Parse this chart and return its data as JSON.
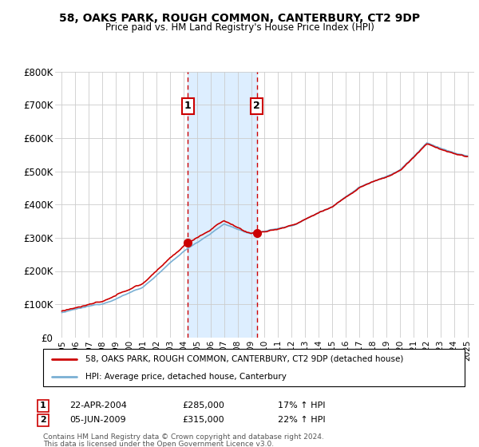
{
  "title": "58, OAKS PARK, ROUGH COMMON, CANTERBURY, CT2 9DP",
  "subtitle": "Price paid vs. HM Land Registry's House Price Index (HPI)",
  "ylim": [
    0,
    800000
  ],
  "yticks": [
    0,
    100000,
    200000,
    300000,
    400000,
    500000,
    600000,
    700000,
    800000
  ],
  "ytick_labels": [
    "£0",
    "£100K",
    "£200K",
    "£300K",
    "£400K",
    "£500K",
    "£600K",
    "£700K",
    "£800K"
  ],
  "sale1_date_num": 2004.31,
  "sale1_price": 285000,
  "sale2_date_num": 2009.43,
  "sale2_price": 315000,
  "sale1_date_str": "22-APR-2004",
  "sale1_pct": "17% ↑ HPI",
  "sale2_date_str": "05-JUN-2009",
  "sale2_pct": "22% ↑ HPI",
  "hpi_color": "#7ab0d4",
  "price_color": "#cc0000",
  "shade_color": "#ddeeff",
  "grid_color": "#cccccc",
  "legend_label_price": "58, OAKS PARK, ROUGH COMMON, CANTERBURY, CT2 9DP (detached house)",
  "legend_label_hpi": "HPI: Average price, detached house, Canterbury",
  "footnote1": "Contains HM Land Registry data © Crown copyright and database right 2024.",
  "footnote2": "This data is licensed under the Open Government Licence v3.0.",
  "xlim_start": 1994.5,
  "xlim_end": 2025.5,
  "xticks": [
    1995,
    1996,
    1997,
    1998,
    1999,
    2000,
    2001,
    2002,
    2003,
    2004,
    2005,
    2006,
    2007,
    2008,
    2009,
    2010,
    2011,
    2012,
    2013,
    2014,
    2015,
    2016,
    2017,
    2018,
    2019,
    2020,
    2021,
    2022,
    2023,
    2024,
    2025
  ]
}
